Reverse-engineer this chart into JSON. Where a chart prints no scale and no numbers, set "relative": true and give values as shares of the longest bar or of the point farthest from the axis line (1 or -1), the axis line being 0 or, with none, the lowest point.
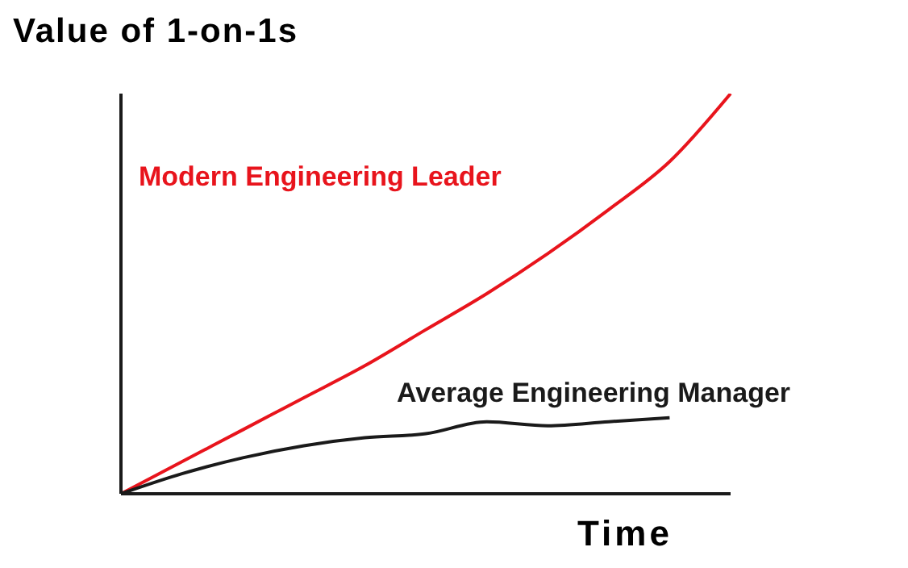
{
  "chart_data": {
    "type": "line",
    "relative": true,
    "ylabel": "Value of 1-on-1s",
    "xlabel": "Time",
    "categories": [
      null,
      null,
      null,
      null,
      null,
      null,
      null,
      null,
      null,
      null,
      null
    ],
    "series": [
      {
        "name": "Modern Engineering Leader",
        "color": "#e8141c",
        "values": [
          0,
          0.08,
          0.16,
          0.24,
          0.32,
          0.41,
          0.5,
          0.6,
          0.71,
          0.83,
          1.0
        ]
      },
      {
        "name": "Average Engineering Manager",
        "color": "#1a1a1a",
        "values": [
          0,
          0.05,
          0.09,
          0.12,
          0.14,
          0.15,
          0.18,
          0.17,
          0.18,
          0.19,
          null
        ]
      }
    ],
    "grid": false,
    "legend": false,
    "marker": "none",
    "line_style": "solid"
  }
}
